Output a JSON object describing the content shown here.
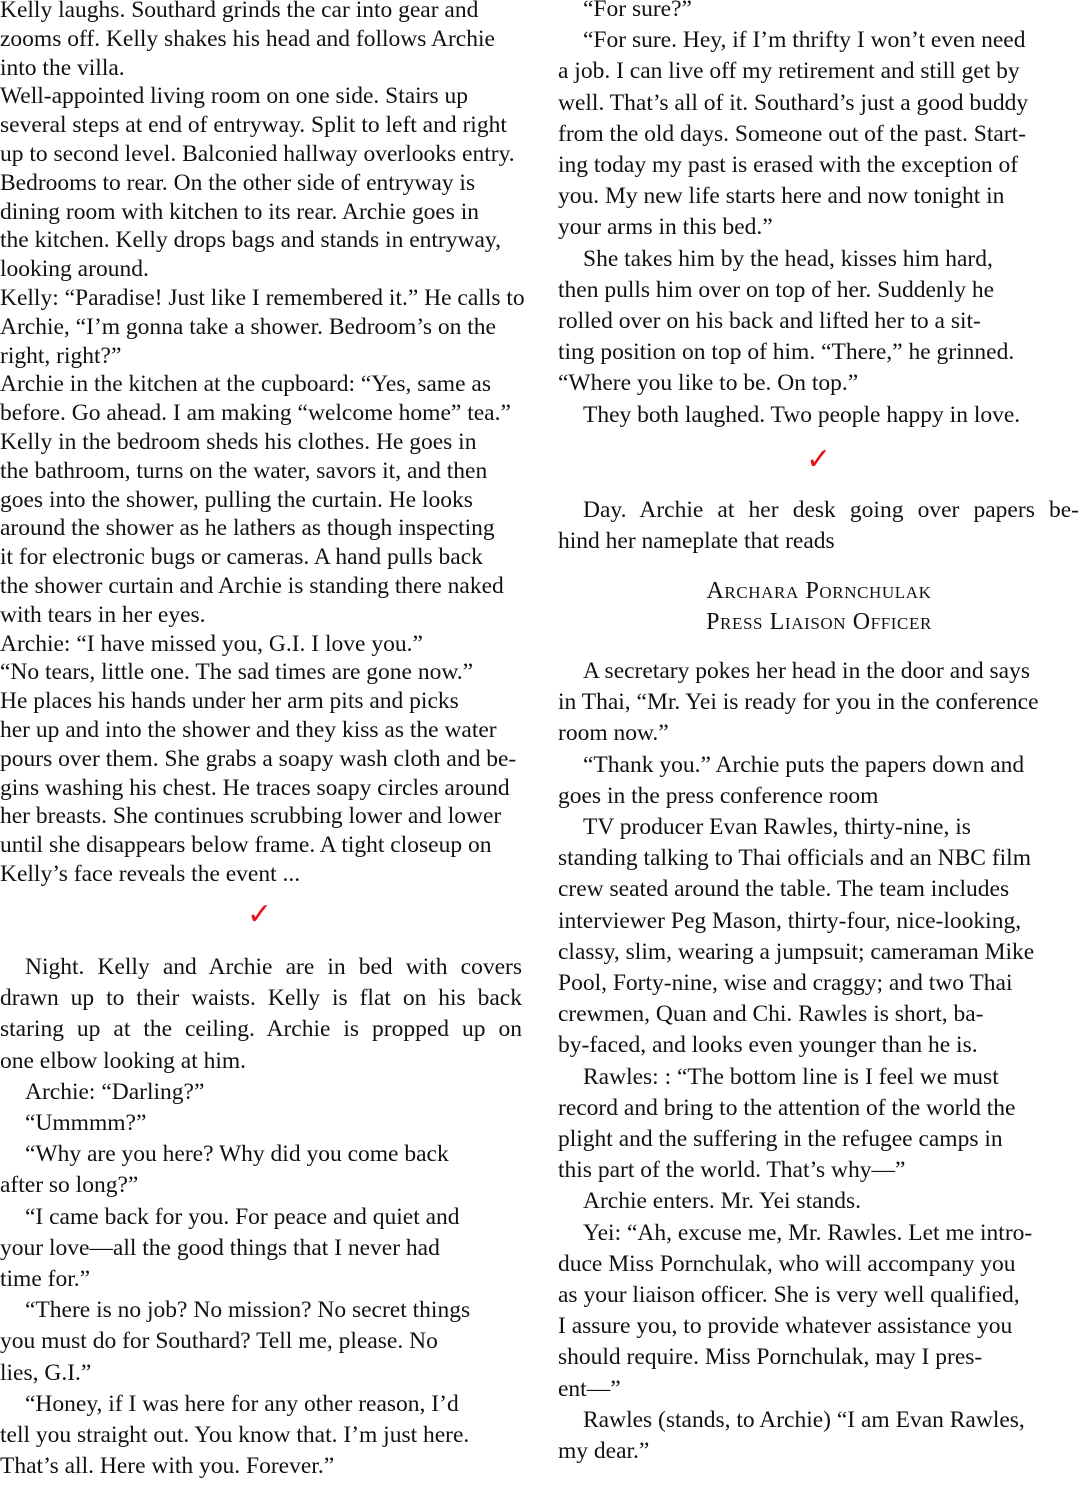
{
  "left": {
    "block1_lines": [
      "Kelly laughs. Southard grinds the car into gear and",
      "zooms off. Kelly shakes his head and follows Archie",
      "into the villa.",
      "Well-appointed living room on one side. Stairs up",
      "several steps at end of entryway. Split to left and right",
      "up to second level. Balconied hallway overlooks entry.",
      "Bedrooms to rear. On the other side of entryway is",
      "dining room with kitchen to its rear. Archie goes in",
      "the kitchen. Kelly drops bags and stands in entryway,",
      "looking around.",
      "Kelly: “Paradise! Just like I remembered it.” He calls to",
      "Archie, “I’m gonna take a shower. Bedroom’s on the",
      "right, right?”",
      "Archie in the kitchen at the cupboard: “Yes, same as",
      "before. Go ahead. I am making “welcome home” tea.”",
      "Kelly in the bedroom sheds his clothes. He goes in",
      "the bathroom, turns on the water, savors it, and then",
      "goes into the shower, pulling the curtain. He looks",
      "around the shower as he lathers as though inspecting",
      "it for electronic bugs or cameras. A hand pulls back",
      "the shower curtain and Archie is standing there naked",
      "with tears in her eyes.",
      "Archie: “I have missed you, G.I. I love you.”",
      "“No tears, little one. The sad times are gone now.”",
      "He places his hands under her arm pits and picks",
      "her up and into the shower and they kiss as the water",
      "pours over them. She grabs a soapy wash cloth and be-",
      "gins washing his chest. He traces soapy circles around",
      "her breasts. She continues scrubbing lower and lower",
      "until she disappears below frame. A tight closeup on",
      "Kelly’s face reveals the event ..."
    ],
    "checkmark": "✓",
    "block2_paragraphs": [
      [
        "Night. Kelly and Archie are in bed with covers",
        "drawn up to their waists. Kelly is flat on his back",
        "staring up at the ceiling. Archie is propped up on",
        "one elbow looking at him."
      ],
      [
        "Archie: “Darling?”"
      ],
      [
        "“Ummmm?”"
      ],
      [
        "“Why are you here? Why did you come back",
        "after so long?”"
      ],
      [
        "“I came back for you. For peace and quiet and",
        "your love—all the good things that I never had",
        "time for.”"
      ],
      [
        "“There is no job? No mission? No secret things",
        "you must do for Southard? Tell me, please. No",
        "lies, G.I.”"
      ],
      [
        "“Honey, if I was here for any other reason, I’d",
        "tell you straight out. You know that. I’m just here.",
        "That’s all. Here with you. Forever.”"
      ]
    ]
  },
  "right": {
    "block1_paragraphs": [
      [
        "“For sure?”"
      ],
      [
        "“For sure. Hey, if I’m thrifty I won’t even need",
        "a job. I can live off my retirement and still get by",
        "well. That’s all of it. Southard’s just a good buddy",
        "from the old days. Someone out of the past. Start-",
        "ing today my past is erased with the exception of",
        "you. My new life starts here and now tonight in",
        "your arms in this bed.”"
      ],
      [
        "She takes him by the head, kisses him hard,",
        "then pulls him over on top of her. Suddenly he",
        "rolled over on his back and lifted her to a sit-",
        "ting position on top of him. “There,” he grinned.",
        "“Where you like to be. On top.”"
      ],
      [
        "They both laughed. Two people happy in love."
      ]
    ],
    "checkmark": "✓",
    "day_paragraph": [
      "Day. Archie at her desk going over papers be-",
      "hind her nameplate that reads"
    ],
    "nameplate": [
      "Archara Pornchulak",
      "Press Liaison Officer"
    ],
    "block3_paragraphs": [
      [
        "A secretary pokes her head in the door and says",
        "in Thai, “Mr. Yei is ready for you in the conference",
        "room now.”"
      ],
      [
        "“Thank you.” Archie puts the papers down and",
        "goes in the press conference room"
      ],
      [
        "TV producer Evan Rawles, thirty-nine, is",
        "standing talking to Thai officials and an NBC film",
        "crew seated around the table. The team includes",
        "interviewer Peg Mason, thirty-four, nice-looking,",
        "classy, slim, wearing a jumpsuit; cameraman Mike",
        "Pool, Forty-nine, wise and craggy; and two Thai",
        "crewmen, Quan and Chi. Rawles is short, ba-",
        "by-faced, and looks even younger than he is."
      ],
      [
        "Rawles: : “The bottom line is I feel we must",
        "record and bring to the attention of the world the",
        "plight and the suffering in the refugee camps in",
        "this part of the world. That’s why—”"
      ],
      [
        "Archie enters. Mr. Yei stands."
      ],
      [
        "Yei: “Ah, excuse me, Mr. Rawles. Let me intro-",
        "duce Miss Pornchulak, who will accompany you",
        "as your liaison officer. She is very well qualified,",
        "I assure you, to provide whatever assistance you",
        "should require. Miss Pornchulak, may I pres-",
        "ent—”"
      ],
      [
        "Rawles (stands, to Archie) “I am Evan Rawles,",
        "my dear.”"
      ]
    ],
    "checkmark_color": "#e0141a"
  }
}
